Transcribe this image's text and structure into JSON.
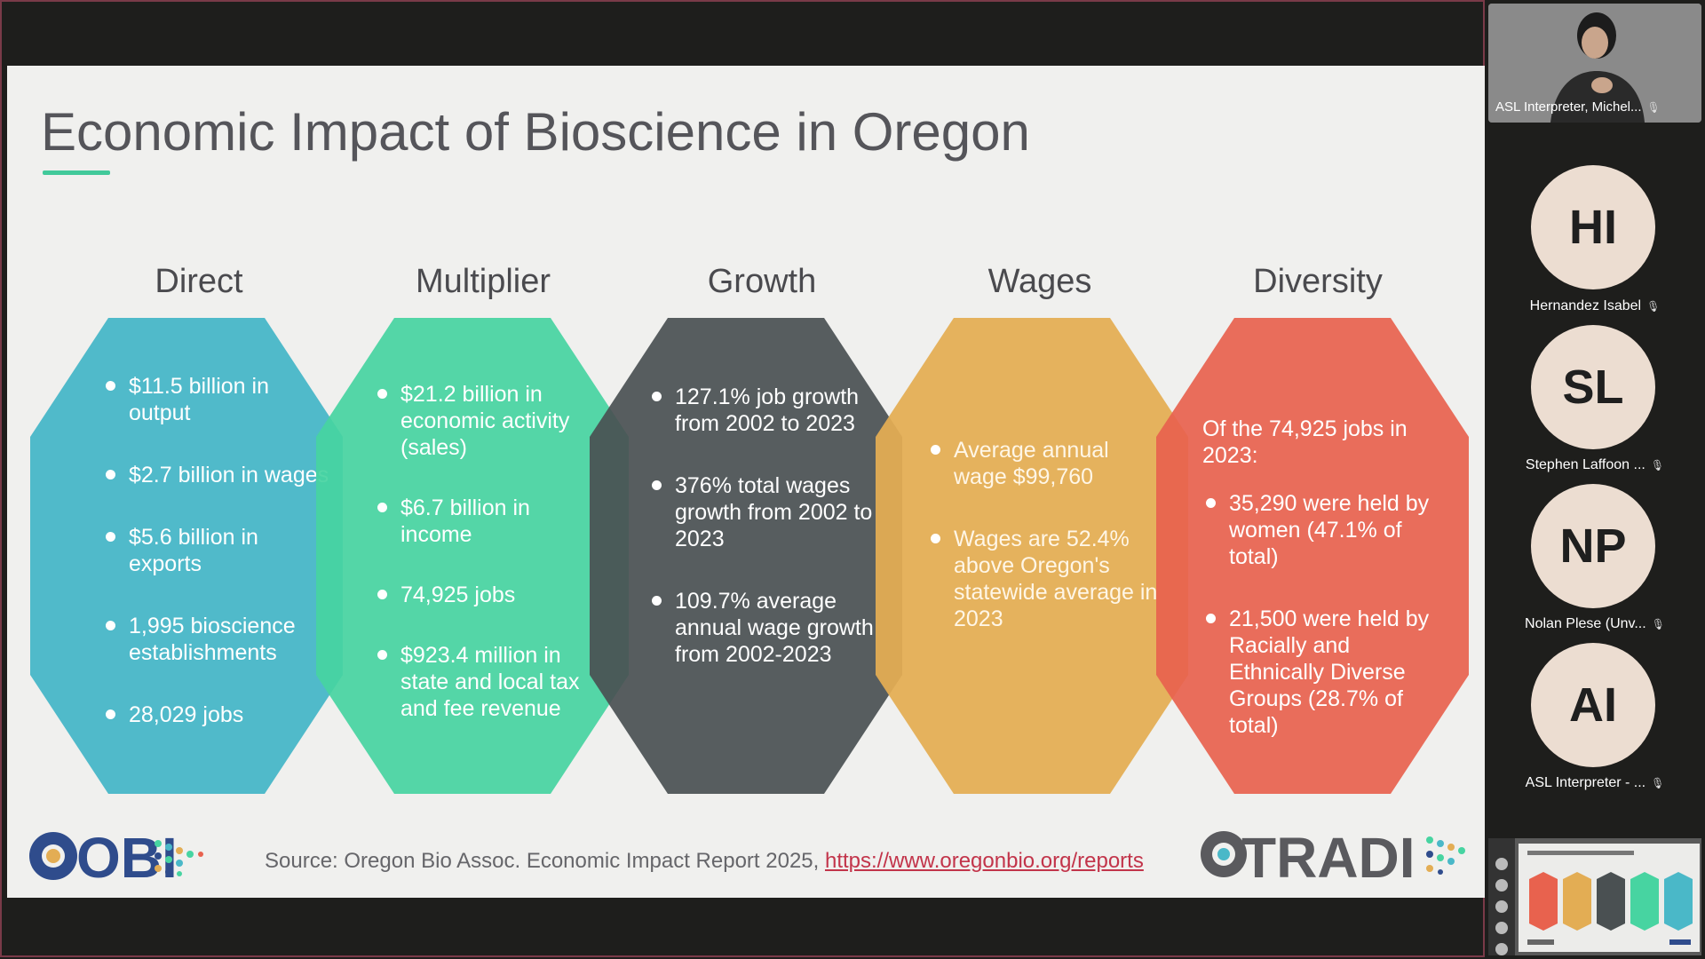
{
  "slide": {
    "title": "Economic Impact of Bioscience in Oregon",
    "columns": [
      {
        "heading": "Direct",
        "bullets": [
          "$11.5 billion in output",
          "$2.7 billion in wages",
          "$5.6 billion in exports",
          "1,995 bioscience establishments",
          "28,029 jobs"
        ]
      },
      {
        "heading": "Multiplier",
        "bullets": [
          "$21.2 billion in economic activity (sales)",
          "$6.7 billion in income",
          "74,925 jobs",
          "$923.4 million in state and local tax and fee revenue"
        ]
      },
      {
        "heading": "Growth",
        "bullets": [
          "127.1% job growth from 2002 to 2023",
          "376% total wages growth from 2002 to 2023",
          "109.7% average annual wage growth from 2002-2023"
        ]
      },
      {
        "heading": "Wages",
        "bullets": [
          "Average annual wage $99,760",
          "Wages are 52.4% above Oregon's statewide average in 2023"
        ]
      },
      {
        "heading": "Diversity",
        "intro": "Of the 74,925 jobs in 2023:",
        "bullets": [
          "35,290 were held by women (47.1% of total)",
          "21,500 were held by Racially and Ethnically Diverse Groups (28.7% of total)"
        ]
      }
    ],
    "source_text": "Source: Oregon Bio Assoc. Economic Impact Report 2025, ",
    "source_link": "https://www.oregonbio.org/reports",
    "logo_left": "OBI",
    "logo_right": "TRADI",
    "colors": {
      "direct": "#4ab8c8",
      "multiplier": "#47d4a1",
      "growth": "#4a5052",
      "wages": "#e3ad54",
      "diversity": "#e8624e",
      "title_underline": "#41c99a",
      "link": "#c2344a"
    }
  },
  "participants": {
    "video": {
      "name": "ASL Interpreter, Michel...",
      "icon": "mic-off-icon"
    },
    "list": [
      {
        "initials": "HI",
        "name": "Hernandez Isabel"
      },
      {
        "initials": "SL",
        "name": "Stephen Laffoon ..."
      },
      {
        "initials": "NP",
        "name": "Nolan Plese (Unv..."
      },
      {
        "initials": "AI",
        "name": "ASL Interpreter - ..."
      }
    ]
  }
}
